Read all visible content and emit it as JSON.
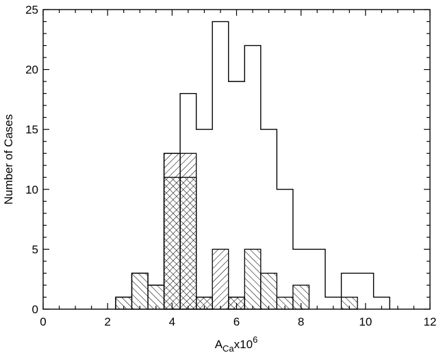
{
  "chart_data": {
    "type": "histogram",
    "title": "",
    "xlabel": {
      "base": "A",
      "subscript": "Ca",
      "mid": "x10",
      "superscript": "6"
    },
    "ylabel": "Number of Cases",
    "xlim": [
      0,
      12
    ],
    "ylim": [
      0,
      25
    ],
    "xticks": [
      "0",
      "2",
      "4",
      "6",
      "8",
      "10",
      "12"
    ],
    "yticks": [
      "0",
      "5",
      "10",
      "15",
      "20",
      "25"
    ],
    "grid": false,
    "legend": "none",
    "bin_width": 0.5,
    "series": [
      {
        "style": "outline",
        "bins": [
          {
            "x0": 2.25,
            "value": 1
          },
          {
            "x0": 2.75,
            "value": 3
          },
          {
            "x0": 3.25,
            "value": 2
          },
          {
            "x0": 3.75,
            "value": 13
          },
          {
            "x0": 4.25,
            "value": 18
          },
          {
            "x0": 4.75,
            "value": 15
          },
          {
            "x0": 5.25,
            "value": 24
          },
          {
            "x0": 5.75,
            "value": 19
          },
          {
            "x0": 6.25,
            "value": 22
          },
          {
            "x0": 6.75,
            "value": 15
          },
          {
            "x0": 7.25,
            "value": 10
          },
          {
            "x0": 7.75,
            "value": 5
          },
          {
            "x0": 8.25,
            "value": 5
          },
          {
            "x0": 8.75,
            "value": 1
          },
          {
            "x0": 9.25,
            "value": 3
          },
          {
            "x0": 9.75,
            "value": 3
          },
          {
            "x0": 10.25,
            "value": 1
          }
        ]
      },
      {
        "style": "hatch-forward",
        "bins": [
          {
            "x0": 3.75,
            "value": 13
          },
          {
            "x0": 4.25,
            "value": 13
          },
          {
            "x0": 4.75,
            "value": 1
          },
          {
            "x0": 5.25,
            "value": 5
          },
          {
            "x0": 5.75,
            "value": 1
          }
        ]
      },
      {
        "style": "hatch-back",
        "bins": [
          {
            "x0": 2.25,
            "value": 1
          },
          {
            "x0": 2.75,
            "value": 3
          },
          {
            "x0": 3.25,
            "value": 2
          },
          {
            "x0": 3.75,
            "value": 11
          },
          {
            "x0": 4.25,
            "value": 11
          },
          {
            "x0": 4.75,
            "value": 1
          },
          {
            "x0": 5.75,
            "value": 1
          },
          {
            "x0": 6.25,
            "value": 5
          },
          {
            "x0": 6.75,
            "value": 3
          },
          {
            "x0": 7.25,
            "value": 1
          },
          {
            "x0": 7.75,
            "value": 2
          },
          {
            "x0": 9.25,
            "value": 1
          }
        ]
      }
    ]
  }
}
